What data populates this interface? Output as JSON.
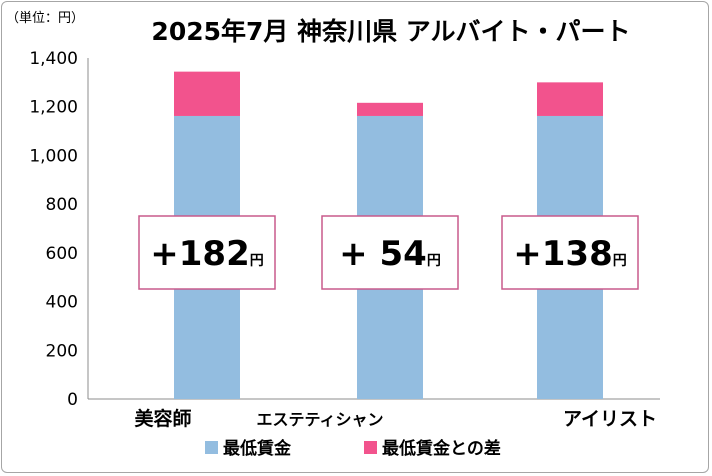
{
  "chart_data": {
    "type": "bar",
    "stacked": true,
    "title": "2025年7月 神奈川県 アルバイト・パート",
    "unit_label": "（単位：円）",
    "categories": [
      "美容師",
      "エステティシャン",
      "アイリスト"
    ],
    "series": [
      {
        "name": "最低賃金",
        "values": [
          1162,
          1162,
          1162
        ],
        "color": "#93bde0"
      },
      {
        "name": "最低賃金との差",
        "values": [
          182,
          54,
          138
        ],
        "color": "#f2538d"
      }
    ],
    "annotations": [
      {
        "sign": "+",
        "value": "182",
        "unit": "円"
      },
      {
        "sign": "+ ",
        "value": "54",
        "unit": "円"
      },
      {
        "sign": "+",
        "value": "138",
        "unit": "円"
      }
    ],
    "yticks": [
      "0",
      "200",
      "400",
      "600",
      "800",
      "1,000",
      "1,200",
      "1,400"
    ],
    "ylim": [
      0,
      1400
    ],
    "grid": false,
    "legend_position": "bottom"
  }
}
